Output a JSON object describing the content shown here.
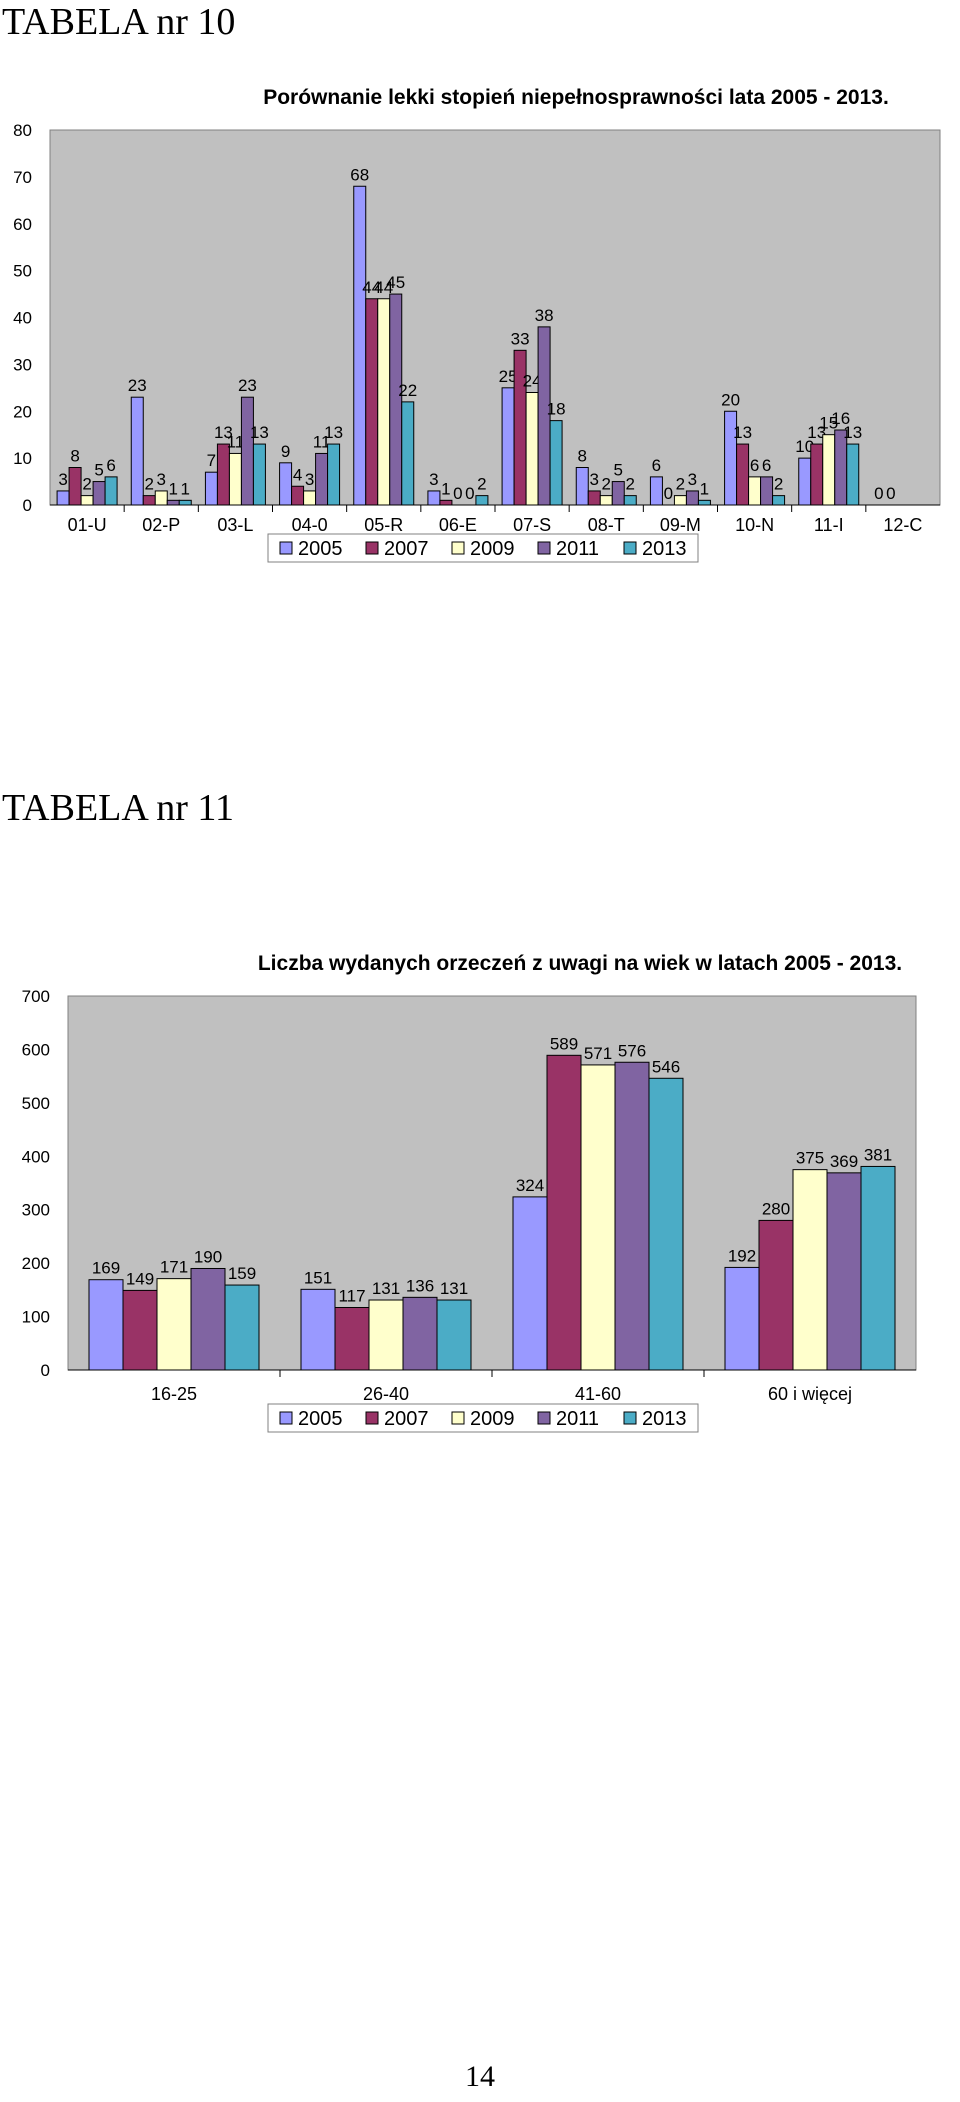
{
  "document": {
    "heading_1": "TABELA nr 10",
    "heading_2": "TABELA nr 11",
    "page_number": "14"
  },
  "palette": [
    "#9999FF",
    "#993366",
    "#FFFFCC",
    "#8064A2",
    "#4BACC6"
  ],
  "chart_data": [
    {
      "type": "bar",
      "title": "Porównanie lekki stopień niepełnosprawności lata 2005 - 2013.",
      "xlabel": "",
      "ylabel": "",
      "ylim": [
        0,
        80
      ],
      "yticks": [
        0,
        10,
        20,
        30,
        40,
        50,
        60,
        70,
        80
      ],
      "grid": false,
      "plot_background": "#C0C0C0",
      "legend_placement": "bottom",
      "categories": [
        "01-U",
        "02-P",
        "03-L",
        "04-0",
        "05-R",
        "06-E",
        "07-S",
        "08-T",
        "09-M",
        "10-N",
        "11-I",
        "12-C"
      ],
      "series": [
        {
          "name": "2005",
          "values": [
            3,
            23,
            7,
            9,
            68,
            3,
            25,
            8,
            6,
            20,
            10,
            0
          ]
        },
        {
          "name": "2007",
          "values": [
            8,
            2,
            13,
            4,
            44,
            1,
            33,
            3,
            0,
            13,
            13,
            0
          ]
        },
        {
          "name": "2009",
          "values": [
            2,
            3,
            11,
            3,
            44,
            0,
            24,
            2,
            2,
            6,
            15,
            null
          ]
        },
        {
          "name": "2011",
          "values": [
            5,
            1,
            23,
            11,
            45,
            0,
            38,
            5,
            3,
            6,
            16,
            null
          ]
        },
        {
          "name": "2013",
          "values": [
            6,
            1,
            13,
            13,
            22,
            2,
            18,
            2,
            1,
            2,
            13,
            null
          ]
        }
      ]
    },
    {
      "type": "bar",
      "title": "Liczba wydanych orzeczeń z uwagi na wiek w latach 2005 - 2013.",
      "xlabel": "",
      "ylabel": "",
      "ylim": [
        0,
        700
      ],
      "yticks": [
        0,
        100,
        200,
        300,
        400,
        500,
        600,
        700
      ],
      "grid": false,
      "plot_background": "#C0C0C0",
      "legend_placement": "bottom",
      "categories": [
        "16-25",
        "26-40",
        "41-60",
        "60 i więcej"
      ],
      "series": [
        {
          "name": "2005",
          "values": [
            169,
            151,
            324,
            192
          ]
        },
        {
          "name": "2007",
          "values": [
            149,
            117,
            589,
            280
          ]
        },
        {
          "name": "2009",
          "values": [
            171,
            131,
            571,
            375
          ]
        },
        {
          "name": "2011",
          "values": [
            190,
            136,
            576,
            369
          ]
        },
        {
          "name": "2013",
          "values": [
            159,
            131,
            546,
            381
          ]
        }
      ]
    }
  ]
}
